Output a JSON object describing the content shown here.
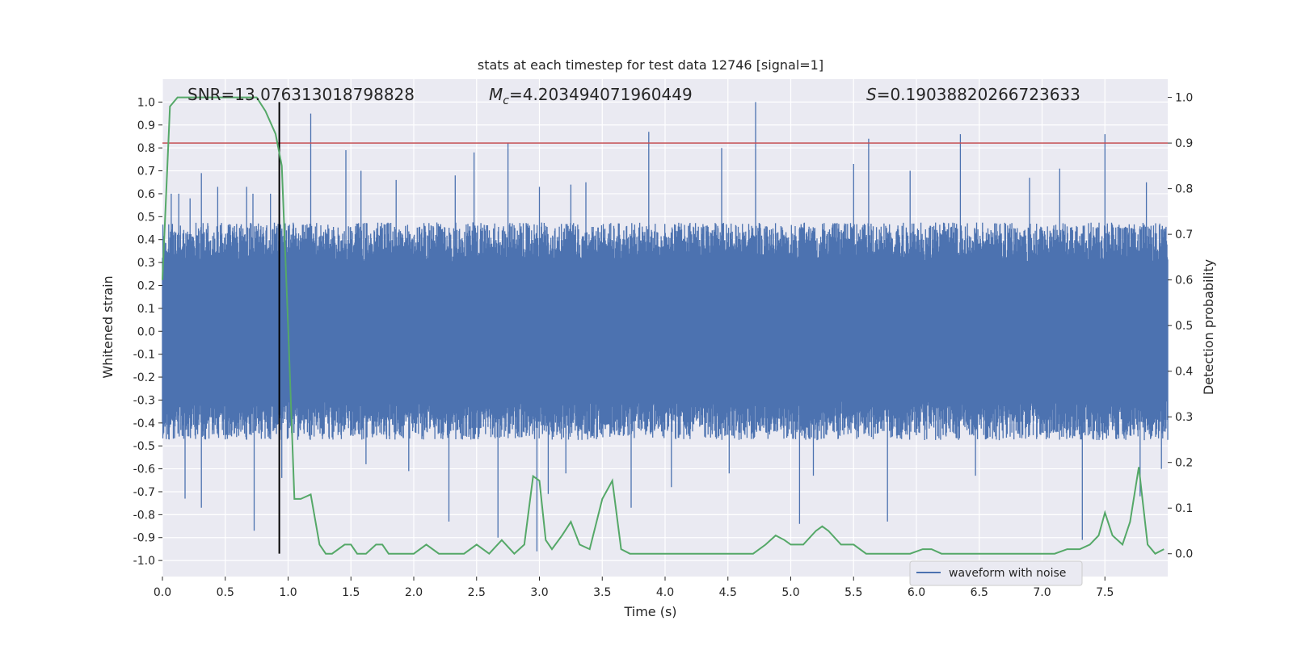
{
  "chart_data": {
    "type": "line",
    "title": "stats at each timestep for test data 12746 [signal=1]",
    "xlabel": "Time (s)",
    "ylabel_left": "Whitened strain",
    "ylabel_right": "Detection probability",
    "xlim": [
      0.0,
      8.0
    ],
    "ylim_left": [
      -1.07,
      1.1
    ],
    "ylim_right": [
      -0.05,
      1.04
    ],
    "x_ticks": [
      "0.0",
      "0.5",
      "1.0",
      "1.5",
      "2.0",
      "2.5",
      "3.0",
      "3.5",
      "4.0",
      "4.5",
      "5.0",
      "5.5",
      "6.0",
      "6.5",
      "7.0",
      "7.5"
    ],
    "x_tick_values": [
      0.0,
      0.5,
      1.0,
      1.5,
      2.0,
      2.5,
      3.0,
      3.5,
      4.0,
      4.5,
      5.0,
      5.5,
      6.0,
      6.5,
      7.0,
      7.5
    ],
    "y_left_ticks": [
      "1.0",
      "0.9",
      "0.8",
      "0.7",
      "0.6",
      "0.5",
      "0.4",
      "0.3",
      "0.2",
      "0.1",
      "0.0",
      "-0.1",
      "-0.2",
      "-0.3",
      "-0.4",
      "-0.5",
      "-0.6",
      "-0.7",
      "-0.8",
      "-0.9",
      "-1.0"
    ],
    "y_left_tick_values": [
      1.0,
      0.9,
      0.8,
      0.7,
      0.6,
      0.5,
      0.4,
      0.3,
      0.2,
      0.1,
      0.0,
      -0.1,
      -0.2,
      -0.3,
      -0.4,
      -0.5,
      -0.6,
      -0.7,
      -0.8,
      -0.9,
      -1.0
    ],
    "y_right_ticks": [
      "1.0",
      "0.9",
      "0.8",
      "0.7",
      "0.6",
      "0.5",
      "0.4",
      "0.3",
      "0.2",
      "0.1",
      "0.0"
    ],
    "y_right_tick_values": [
      1.0,
      0.9,
      0.8,
      0.7,
      0.6,
      0.5,
      0.4,
      0.3,
      0.2,
      0.1,
      0.0
    ],
    "grid": true,
    "background_color": "#eaeaf2",
    "annotations": {
      "snr": "SNR=13.076313018798828",
      "mc_symbol": "M",
      "mc_sub": "c",
      "mc_value": "=4.203494071960449",
      "s_symbol": "S",
      "s_value": "=0.19038820266723633"
    },
    "threshold_line": {
      "axis": "right",
      "y": 0.9,
      "color": "#c44e52"
    },
    "marker_line": {
      "x": 0.93,
      "y_from": -0.97,
      "y_to": 1.0,
      "color": "#000000"
    },
    "waveform": {
      "name": "waveform with noise",
      "color": "#4c72b0",
      "envelope": 0.38,
      "spikes": [
        [
          0.07,
          0.6
        ],
        [
          0.13,
          0.6
        ],
        [
          0.22,
          0.58
        ],
        [
          0.31,
          0.69
        ],
        [
          0.44,
          0.63
        ],
        [
          0.67,
          0.63
        ],
        [
          0.72,
          0.6
        ],
        [
          0.86,
          0.6
        ],
        [
          1.18,
          0.95
        ],
        [
          1.46,
          0.79
        ],
        [
          1.58,
          0.7
        ],
        [
          1.86,
          0.66
        ],
        [
          2.33,
          0.68
        ],
        [
          2.48,
          0.78
        ],
        [
          2.75,
          0.82
        ],
        [
          3.0,
          0.63
        ],
        [
          3.25,
          0.64
        ],
        [
          3.37,
          0.65
        ],
        [
          3.87,
          0.87
        ],
        [
          4.45,
          0.8
        ],
        [
          4.72,
          1.0
        ],
        [
          5.5,
          0.73
        ],
        [
          5.62,
          0.84
        ],
        [
          5.95,
          0.7
        ],
        [
          6.35,
          0.86
        ],
        [
          6.9,
          0.67
        ],
        [
          7.14,
          0.71
        ],
        [
          7.5,
          0.86
        ],
        [
          7.83,
          0.65
        ],
        [
          0.18,
          -0.73
        ],
        [
          0.31,
          -0.77
        ],
        [
          0.73,
          -0.87
        ],
        [
          0.95,
          -0.64
        ],
        [
          1.62,
          -0.58
        ],
        [
          1.96,
          -0.61
        ],
        [
          2.28,
          -0.83
        ],
        [
          2.67,
          -0.9
        ],
        [
          2.98,
          -0.96
        ],
        [
          3.07,
          -0.71
        ],
        [
          3.21,
          -0.62
        ],
        [
          3.73,
          -0.77
        ],
        [
          4.05,
          -0.68
        ],
        [
          4.51,
          -0.62
        ],
        [
          5.07,
          -0.84
        ],
        [
          5.18,
          -0.63
        ],
        [
          5.77,
          -0.83
        ],
        [
          6.47,
          -0.63
        ],
        [
          7.32,
          -0.91
        ],
        [
          7.78,
          -0.72
        ],
        [
          7.95,
          -0.6
        ]
      ]
    },
    "probability": {
      "color": "#55a868",
      "x": [
        0.0,
        0.06,
        0.12,
        0.2,
        0.3,
        0.4,
        0.5,
        0.6,
        0.7,
        0.75,
        0.82,
        0.9,
        0.95,
        1.0,
        1.05,
        1.1,
        1.18,
        1.25,
        1.3,
        1.35,
        1.45,
        1.5,
        1.55,
        1.62,
        1.7,
        1.75,
        1.8,
        1.85,
        1.95,
        2.0,
        2.1,
        2.2,
        2.3,
        2.4,
        2.5,
        2.6,
        2.7,
        2.8,
        2.88,
        2.95,
        3.0,
        3.05,
        3.1,
        3.18,
        3.25,
        3.32,
        3.4,
        3.5,
        3.58,
        3.65,
        3.72,
        3.85,
        4.0,
        4.2,
        4.4,
        4.5,
        4.6,
        4.7,
        4.8,
        4.88,
        4.95,
        5.0,
        5.1,
        5.2,
        5.25,
        5.3,
        5.4,
        5.5,
        5.6,
        5.7,
        5.85,
        5.95,
        6.05,
        6.12,
        6.2,
        6.3,
        6.4,
        6.5,
        6.7,
        6.9,
        7.1,
        7.2,
        7.3,
        7.38,
        7.45,
        7.5,
        7.56,
        7.64,
        7.7,
        7.77,
        7.84,
        7.9,
        7.97
      ],
      "y": [
        0.6,
        0.98,
        1.0,
        1.0,
        1.0,
        1.0,
        1.0,
        1.0,
        1.0,
        1.0,
        0.97,
        0.92,
        0.85,
        0.5,
        0.12,
        0.12,
        0.13,
        0.02,
        0.0,
        0.0,
        0.02,
        0.02,
        0.0,
        0.0,
        0.02,
        0.02,
        0.0,
        0.0,
        0.0,
        0.0,
        0.02,
        0.0,
        0.0,
        0.0,
        0.02,
        0.0,
        0.03,
        0.0,
        0.02,
        0.17,
        0.16,
        0.03,
        0.01,
        0.04,
        0.07,
        0.02,
        0.01,
        0.12,
        0.16,
        0.01,
        0.0,
        0.0,
        0.0,
        0.0,
        0.0,
        0.0,
        0.0,
        0.0,
        0.02,
        0.04,
        0.03,
        0.02,
        0.02,
        0.05,
        0.06,
        0.05,
        0.02,
        0.02,
        0.0,
        0.0,
        0.0,
        0.0,
        0.01,
        0.01,
        0.0,
        0.0,
        0.0,
        0.0,
        0.0,
        0.0,
        0.0,
        0.01,
        0.01,
        0.02,
        0.04,
        0.09,
        0.04,
        0.02,
        0.07,
        0.19,
        0.02,
        0.0,
        0.01
      ]
    },
    "legend": {
      "location": "lower-right",
      "entries": [
        "waveform with noise"
      ]
    }
  }
}
